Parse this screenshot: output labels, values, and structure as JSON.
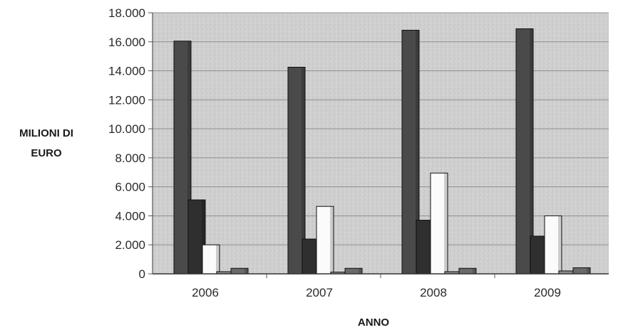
{
  "chart_data": {
    "type": "bar",
    "title": "",
    "xlabel": "ANNO",
    "ylabel_lines": [
      "MILIONI DI",
      "EURO"
    ],
    "categories": [
      "2006",
      "2007",
      "2008",
      "2009"
    ],
    "ylim": [
      0,
      18000
    ],
    "yticks": [
      0,
      2000,
      4000,
      6000,
      8000,
      10000,
      12000,
      14000,
      16000,
      18000
    ],
    "ytick_labels": [
      "0",
      "2.000",
      "4.000",
      "6.000",
      "8.000",
      "10.000",
      "12.000",
      "14.000",
      "16.000",
      "18.000"
    ],
    "grid": true,
    "legend": "none",
    "series": [
      {
        "values": [
          16050,
          14250,
          16800,
          16900
        ],
        "color": "#4a4a4a"
      },
      {
        "values": [
          5100,
          2400,
          3700,
          2600
        ],
        "color": "#2f2f2f"
      },
      {
        "values": [
          2000,
          4650,
          6950,
          4000
        ],
        "color": "#fbfbfb"
      },
      {
        "values": [
          150,
          120,
          150,
          200
        ],
        "color": "#8a8a8a"
      },
      {
        "values": [
          380,
          380,
          380,
          420
        ],
        "color": "#6a6a6a"
      }
    ]
  }
}
